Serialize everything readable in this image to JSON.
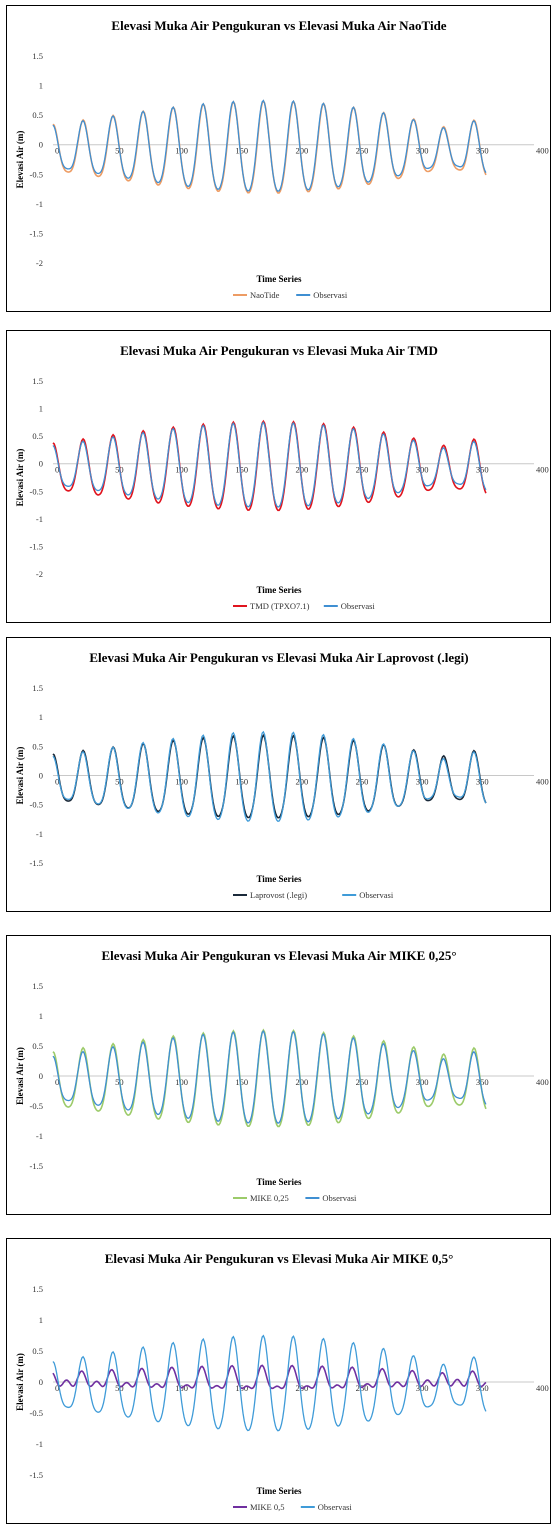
{
  "chart_data": [
    {
      "type": "line",
      "title": "Elevasi Muka Air Pengukuran vs Elevasi Muka Air NaoTide",
      "xlabel": "Time Series",
      "ylabel": "Elevasi Air (m)",
      "xlim": [
        0,
        400
      ],
      "ylim": [
        -2,
        1.5
      ],
      "yticks": [
        "1.5",
        "1",
        "0.5",
        "0",
        "-0.5",
        "-1",
        "-1.5",
        "-2"
      ],
      "xticks": [
        "0",
        "50",
        "100",
        "150",
        "200",
        "250",
        "300",
        "350",
        "400"
      ],
      "grid": false,
      "legend": "bottom",
      "series": [
        {
          "name": "NaoTide",
          "color": "#ED9C64",
          "amp": 0.97,
          "floor": 0.34,
          "phase": 0.0,
          "mean": -0.12
        },
        {
          "name": "Observasi",
          "color": "#3F8FD2",
          "amp": 0.97,
          "floor": 0.3,
          "phase": 0.05,
          "mean": -0.1
        }
      ]
    },
    {
      "type": "line",
      "title": "Elevasi Muka Air Pengukuran vs Elevasi Muka Air TMD",
      "xlabel": "Time Series",
      "ylabel": "Elevasi Air (m)",
      "xlim": [
        0,
        400
      ],
      "ylim": [
        -2,
        1.5
      ],
      "yticks": [
        "1.5",
        "1",
        "0.5",
        "0",
        "-0.5",
        "-1",
        "-1.5",
        "-2"
      ],
      "xticks": [
        "0",
        "50",
        "100",
        "150",
        "200",
        "250",
        "300",
        "350",
        "400"
      ],
      "grid": false,
      "legend": "bottom",
      "series": [
        {
          "name": "TMD (TPXO7.1)",
          "color": "#E0141E",
          "amp": 1.0,
          "floor": 0.36,
          "phase": 0.0,
          "mean": -0.12
        },
        {
          "name": "Observasi",
          "color": "#3F8FD2",
          "amp": 0.97,
          "floor": 0.3,
          "phase": 0.05,
          "mean": -0.1
        }
      ]
    },
    {
      "type": "line",
      "title": "Elevasi Muka Air Pengukuran vs Elevasi Muka Air Laprovost (.legi)",
      "xlabel": "Time Series",
      "ylabel": "Elevasi Air (m)",
      "xlim": [
        0,
        400
      ],
      "ylim": [
        -1.5,
        1.5
      ],
      "yticks": [
        "1.5",
        "1",
        "0.5",
        "0",
        "-0.5",
        "-1",
        "-1.5"
      ],
      "xticks": [
        "0",
        "50",
        "100",
        "150",
        "200",
        "250",
        "300",
        "350",
        "400"
      ],
      "grid": false,
      "legend": "bottom",
      "series": [
        {
          "name": "Laprovost (.legi)",
          "color": "#1B2A3A",
          "amp": 0.86,
          "floor": 0.4,
          "phase": 0.0,
          "mean": -0.1
        },
        {
          "name": "Observasi",
          "color": "#3F9BD8",
          "amp": 0.97,
          "floor": 0.3,
          "phase": 0.05,
          "mean": -0.1
        }
      ]
    },
    {
      "type": "line",
      "title": "Elevasi Muka Air Pengukuran vs Elevasi Muka Air MIKE 0,25°",
      "xlabel": "Time Series",
      "ylabel": "Elevasi Air (m)",
      "xlim": [
        0,
        400
      ],
      "ylim": [
        -1.5,
        1.5
      ],
      "yticks": [
        "1.5",
        "1",
        "0.5",
        "0",
        "-0.5",
        "-1",
        "-1.5"
      ],
      "xticks": [
        "0",
        "50",
        "100",
        "150",
        "200",
        "250",
        "300",
        "350",
        "400"
      ],
      "grid": false,
      "legend": "bottom",
      "series": [
        {
          "name": "MIKE 0,25",
          "color": "#9CCB6A",
          "amp": 0.98,
          "floor": 0.4,
          "phase": 0.0,
          "mean": -0.12
        },
        {
          "name": "Observasi",
          "color": "#3F8FD2",
          "amp": 0.97,
          "floor": 0.3,
          "phase": 0.05,
          "mean": -0.1
        }
      ]
    },
    {
      "type": "line",
      "title": "Elevasi Muka Air Pengukuran vs Elevasi Muka Air MIKE 0,5°",
      "xlabel": "Time Series",
      "ylabel": "Elevasi Air (m)",
      "xlim": [
        0,
        400
      ],
      "ylim": [
        -1.5,
        1.5
      ],
      "yticks": [
        "1.5",
        "1",
        "0.5",
        "0",
        "-0.5",
        "-1",
        "-1.5"
      ],
      "xticks": [
        "0",
        "50",
        "100",
        "150",
        "200",
        "250",
        "300",
        "350",
        "400"
      ],
      "grid": false,
      "legend": "bottom",
      "series": [
        {
          "name": "MIKE 0,5",
          "color": "#7030A0",
          "amp": 0.22,
          "floor": 0.2,
          "phase": 0.3,
          "mean": 0.02
        },
        {
          "name": "Observasi",
          "color": "#3F9BD8",
          "amp": 0.97,
          "floor": 0.3,
          "phase": 0.05,
          "mean": -0.1
        }
      ]
    }
  ]
}
